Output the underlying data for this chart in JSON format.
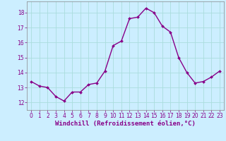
{
  "x": [
    0,
    1,
    2,
    3,
    4,
    5,
    6,
    7,
    8,
    9,
    10,
    11,
    12,
    13,
    14,
    15,
    16,
    17,
    18,
    19,
    20,
    21,
    22,
    23
  ],
  "y": [
    13.4,
    13.1,
    13.0,
    12.4,
    12.1,
    12.7,
    12.7,
    13.2,
    13.3,
    14.1,
    15.8,
    16.1,
    17.6,
    17.7,
    18.3,
    18.0,
    17.1,
    16.7,
    15.0,
    14.0,
    13.3,
    13.4,
    13.7,
    14.1
  ],
  "line_color": "#880088",
  "marker": "D",
  "marker_size": 2.0,
  "line_width": 1.0,
  "xlabel": "Windchill (Refroidissement éolien,°C)",
  "xlabel_fontsize": 6.5,
  "xlabel_color": "#880088",
  "ylim": [
    11.5,
    18.75
  ],
  "xlim": [
    -0.5,
    23.5
  ],
  "yticks": [
    12,
    13,
    14,
    15,
    16,
    17,
    18
  ],
  "xticks": [
    0,
    1,
    2,
    3,
    4,
    5,
    6,
    7,
    8,
    9,
    10,
    11,
    12,
    13,
    14,
    15,
    16,
    17,
    18,
    19,
    20,
    21,
    22,
    23
  ],
  "grid_color": "#aadddd",
  "background_color": "#cceeff",
  "tick_fontsize": 5.5,
  "tick_color": "#880088"
}
